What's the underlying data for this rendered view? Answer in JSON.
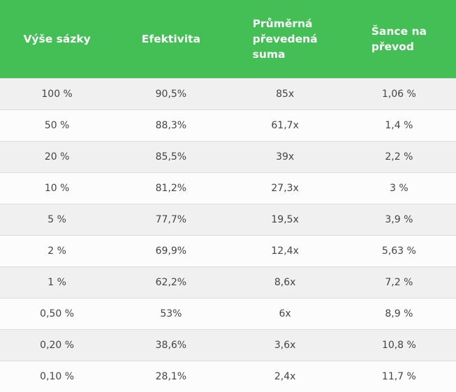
{
  "table": {
    "headers": [
      "Výše sázky",
      "Efektivita",
      "Průměrná převedená suma",
      "Šance na převod"
    ],
    "header_lines": [
      [
        "Výše sázky"
      ],
      [
        "Efektivita"
      ],
      [
        "Průměrná",
        "převedená",
        "suma"
      ],
      [
        "Šance na",
        "převod"
      ]
    ],
    "rows": [
      [
        "100 %",
        "90,5%",
        "85x",
        "1,06 %"
      ],
      [
        "50 %",
        "88,3%",
        "61,7x",
        "1,4 %"
      ],
      [
        "20 %",
        "85,5%",
        "39x",
        "2,2 %"
      ],
      [
        "10 %",
        "81,2%",
        "27,3x",
        "3 %"
      ],
      [
        "5 %",
        "77,7%",
        "19,5x",
        "3,9 %"
      ],
      [
        "2 %",
        "69,9%",
        "12,4x",
        "5,63 %"
      ],
      [
        "1 %",
        "62,2%",
        "8,6x",
        "7,2 %"
      ],
      [
        "0,50 %",
        "53%",
        "6x",
        "8,9 %"
      ],
      [
        "0,20 %",
        "38,6%",
        "3,6x",
        "10,8 %"
      ],
      [
        "0,10 %",
        "28,1%",
        "2,4x",
        "11,7 %"
      ]
    ]
  },
  "colors": {
    "header_background": "#43bf55",
    "header_text": "#ffffff",
    "row_odd": "#f0f0f0",
    "row_even": "#fcfcfc",
    "cell_text": "#444444"
  }
}
